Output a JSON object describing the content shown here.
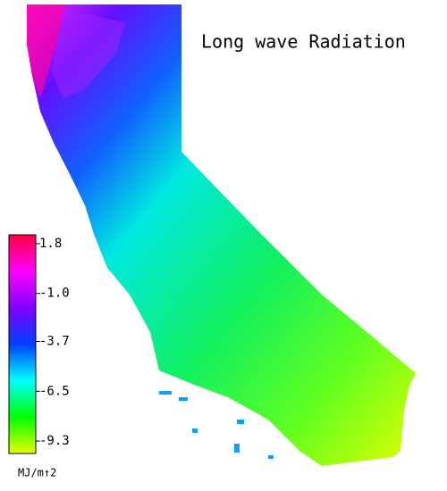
{
  "map": {
    "title": "Long wave Radiation",
    "colorbar": {
      "unit": "MJ/m↑2",
      "lim": [
        -10.0,
        2.3
      ],
      "ticks": [
        1.8,
        {
          "value": -1.0,
          "label": "-1.0"
        },
        -3.7,
        -6.5,
        -9.3
      ],
      "colormap": [
        "#e8ff00",
        "#00ff00",
        "#00ffff",
        "#0040ff",
        "#8000ff",
        "#ff00ff",
        "#ff0040"
      ]
    }
  }
}
